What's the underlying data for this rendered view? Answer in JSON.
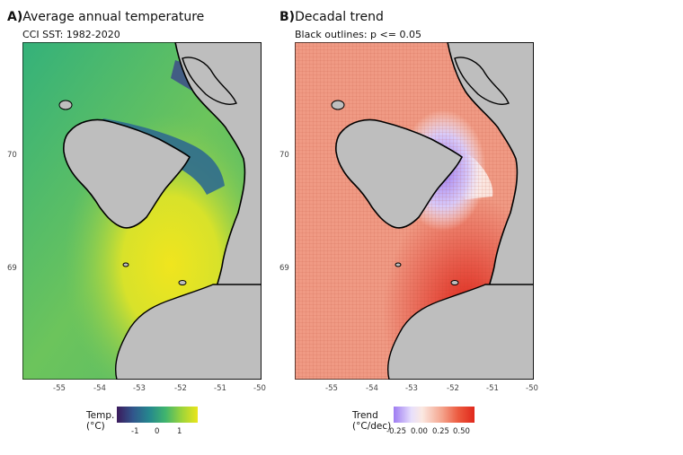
{
  "panels": [
    {
      "letter": "A)",
      "title": "Average annual temperature",
      "subtitle": "CCI SST: 1982-2020",
      "legend": {
        "title_line1": "Temp.",
        "title_line2": "(°C)",
        "ticks": [
          "-1",
          "0",
          "1"
        ],
        "colors": [
          "#3b1a5c",
          "#31568c",
          "#25878e",
          "#3fb46e",
          "#9bd43b",
          "#eae51a"
        ]
      }
    },
    {
      "letter": "B)",
      "title": "Decadal trend",
      "subtitle": "Black outlines: p <= 0.05",
      "legend": {
        "title_line1": "Trend",
        "title_line2": "(°C/dec)",
        "ticks": [
          "-0.25",
          "0.00",
          "0.25",
          "0.50"
        ],
        "colors": [
          "#9e7cf2",
          "#e7dffc",
          "#fbe9e2",
          "#f4a38c",
          "#ec5a3f",
          "#e0281c"
        ]
      }
    }
  ],
  "axes": {
    "x_ticks": [
      "-55",
      "-54",
      "-53",
      "-52",
      "-51",
      "-50"
    ],
    "y_ticks": [
      "70",
      "69"
    ]
  },
  "colors": {
    "land": "#bebebe",
    "background": "#ffffff"
  }
}
